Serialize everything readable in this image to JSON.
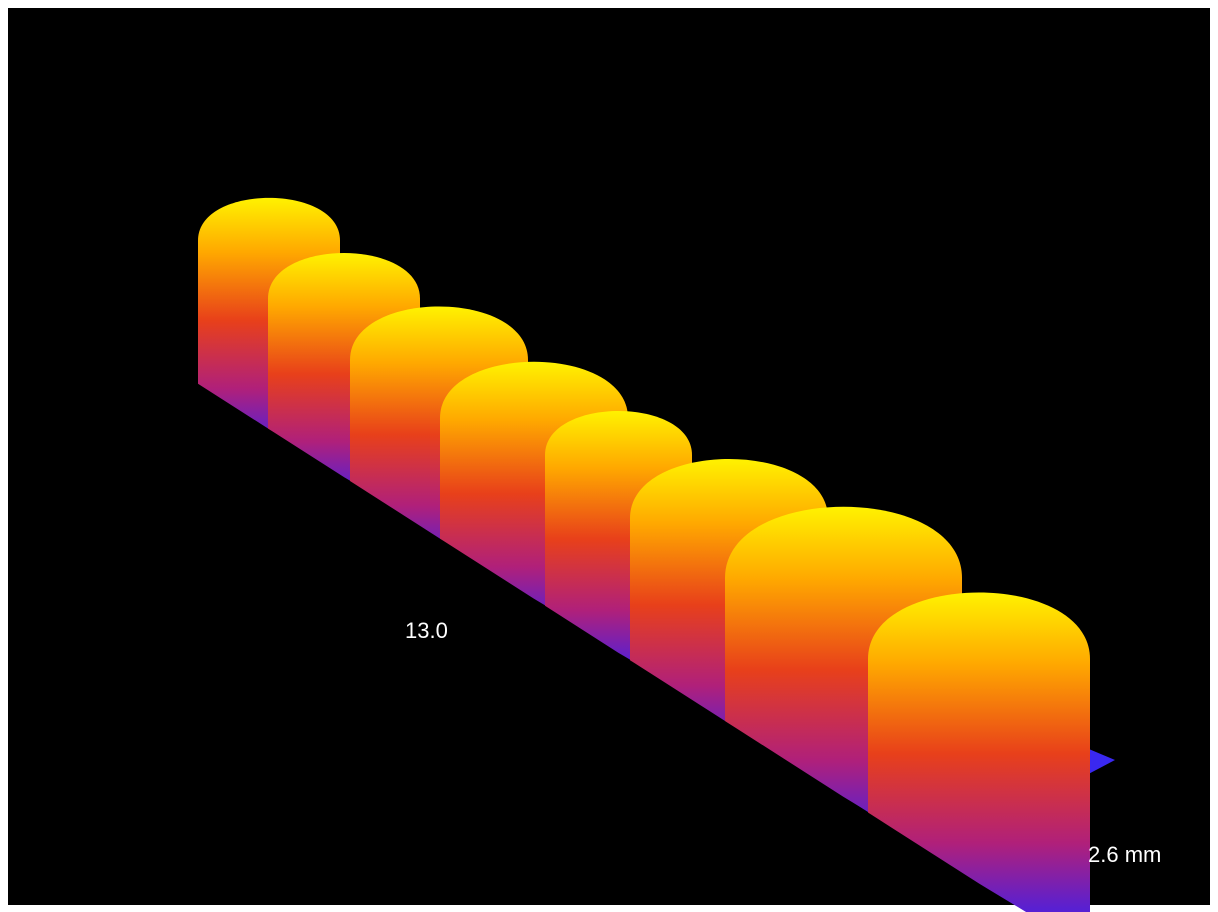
{
  "labels": {
    "length": "13.0",
    "width": "2.6 mm"
  }
}
